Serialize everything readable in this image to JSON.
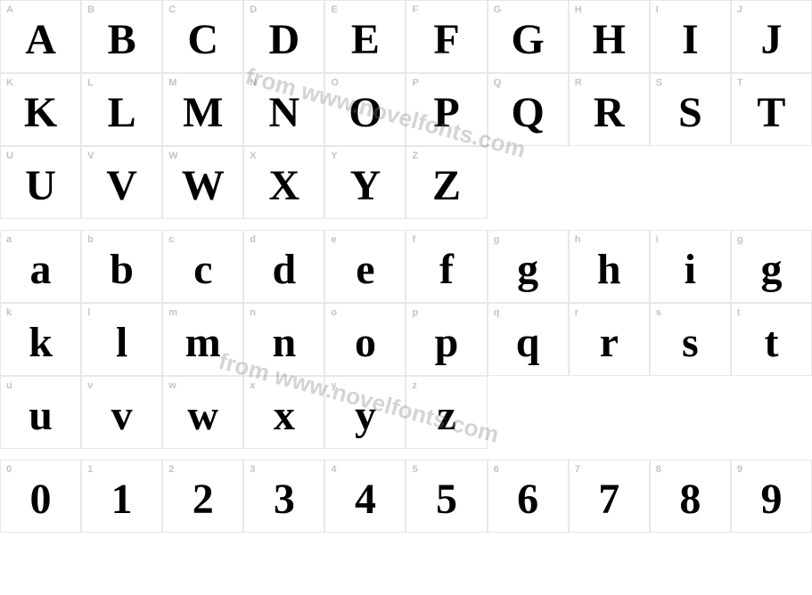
{
  "watermark_text": "from www.novelfonts.com",
  "colors": {
    "background": "#ffffff",
    "border": "#e8e8e8",
    "label": "#c4c4c4",
    "glyph": "#000000",
    "watermark": "rgba(120,120,120,0.32)"
  },
  "typography": {
    "label_fontsize": 11,
    "glyph_fontsize": 48,
    "glyph_weight": 900,
    "watermark_fontsize": 26
  },
  "grid_columns": 10,
  "rows": [
    {
      "type": "glyphs",
      "cells": [
        {
          "label": "A",
          "glyph": "A"
        },
        {
          "label": "B",
          "glyph": "B"
        },
        {
          "label": "C",
          "glyph": "C"
        },
        {
          "label": "D",
          "glyph": "D"
        },
        {
          "label": "E",
          "glyph": "E"
        },
        {
          "label": "F",
          "glyph": "F"
        },
        {
          "label": "G",
          "glyph": "G"
        },
        {
          "label": "H",
          "glyph": "H"
        },
        {
          "label": "I",
          "glyph": "I"
        },
        {
          "label": "J",
          "glyph": "J"
        }
      ]
    },
    {
      "type": "glyphs",
      "cells": [
        {
          "label": "K",
          "glyph": "K"
        },
        {
          "label": "L",
          "glyph": "L"
        },
        {
          "label": "M",
          "glyph": "M"
        },
        {
          "label": "N",
          "glyph": "N"
        },
        {
          "label": "O",
          "glyph": "O"
        },
        {
          "label": "P",
          "glyph": "P"
        },
        {
          "label": "Q",
          "glyph": "Q"
        },
        {
          "label": "R",
          "glyph": "R"
        },
        {
          "label": "S",
          "glyph": "S"
        },
        {
          "label": "T",
          "glyph": "T"
        }
      ]
    },
    {
      "type": "glyphs",
      "cells": [
        {
          "label": "U",
          "glyph": "U"
        },
        {
          "label": "V",
          "glyph": "V"
        },
        {
          "label": "W",
          "glyph": "W"
        },
        {
          "label": "X",
          "glyph": "X"
        },
        {
          "label": "Y",
          "glyph": "Y"
        },
        {
          "label": "Z",
          "glyph": "Z"
        },
        {
          "empty": true
        },
        {
          "empty": true
        },
        {
          "empty": true
        },
        {
          "empty": true
        }
      ]
    },
    {
      "type": "spacer"
    },
    {
      "type": "glyphs",
      "cells": [
        {
          "label": "a",
          "glyph": "a"
        },
        {
          "label": "b",
          "glyph": "b"
        },
        {
          "label": "c",
          "glyph": "c"
        },
        {
          "label": "d",
          "glyph": "d"
        },
        {
          "label": "e",
          "glyph": "e"
        },
        {
          "label": "f",
          "glyph": "f"
        },
        {
          "label": "g",
          "glyph": "g"
        },
        {
          "label": "h",
          "glyph": "h"
        },
        {
          "label": "i",
          "glyph": "i"
        },
        {
          "label": "g",
          "glyph": "g"
        }
      ]
    },
    {
      "type": "glyphs",
      "cells": [
        {
          "label": "k",
          "glyph": "k"
        },
        {
          "label": "l",
          "glyph": "l"
        },
        {
          "label": "m",
          "glyph": "m"
        },
        {
          "label": "n",
          "glyph": "n"
        },
        {
          "label": "o",
          "glyph": "o"
        },
        {
          "label": "p",
          "glyph": "p"
        },
        {
          "label": "q",
          "glyph": "q"
        },
        {
          "label": "r",
          "glyph": "r"
        },
        {
          "label": "s",
          "glyph": "s"
        },
        {
          "label": "t",
          "glyph": "t"
        }
      ]
    },
    {
      "type": "glyphs",
      "cells": [
        {
          "label": "u",
          "glyph": "u"
        },
        {
          "label": "v",
          "glyph": "v"
        },
        {
          "label": "w",
          "glyph": "w"
        },
        {
          "label": "x",
          "glyph": "x"
        },
        {
          "label": "y",
          "glyph": "y"
        },
        {
          "label": "z",
          "glyph": "z"
        },
        {
          "empty": true
        },
        {
          "empty": true
        },
        {
          "empty": true
        },
        {
          "empty": true
        }
      ]
    },
    {
      "type": "spacer"
    },
    {
      "type": "glyphs",
      "cells": [
        {
          "label": "0",
          "glyph": "0"
        },
        {
          "label": "1",
          "glyph": "1"
        },
        {
          "label": "2",
          "glyph": "2"
        },
        {
          "label": "3",
          "glyph": "3"
        },
        {
          "label": "4",
          "glyph": "4"
        },
        {
          "label": "5",
          "glyph": "5"
        },
        {
          "label": "6",
          "glyph": "6"
        },
        {
          "label": "7",
          "glyph": "7"
        },
        {
          "label": "8",
          "glyph": "8"
        },
        {
          "label": "9",
          "glyph": "9"
        }
      ]
    }
  ]
}
